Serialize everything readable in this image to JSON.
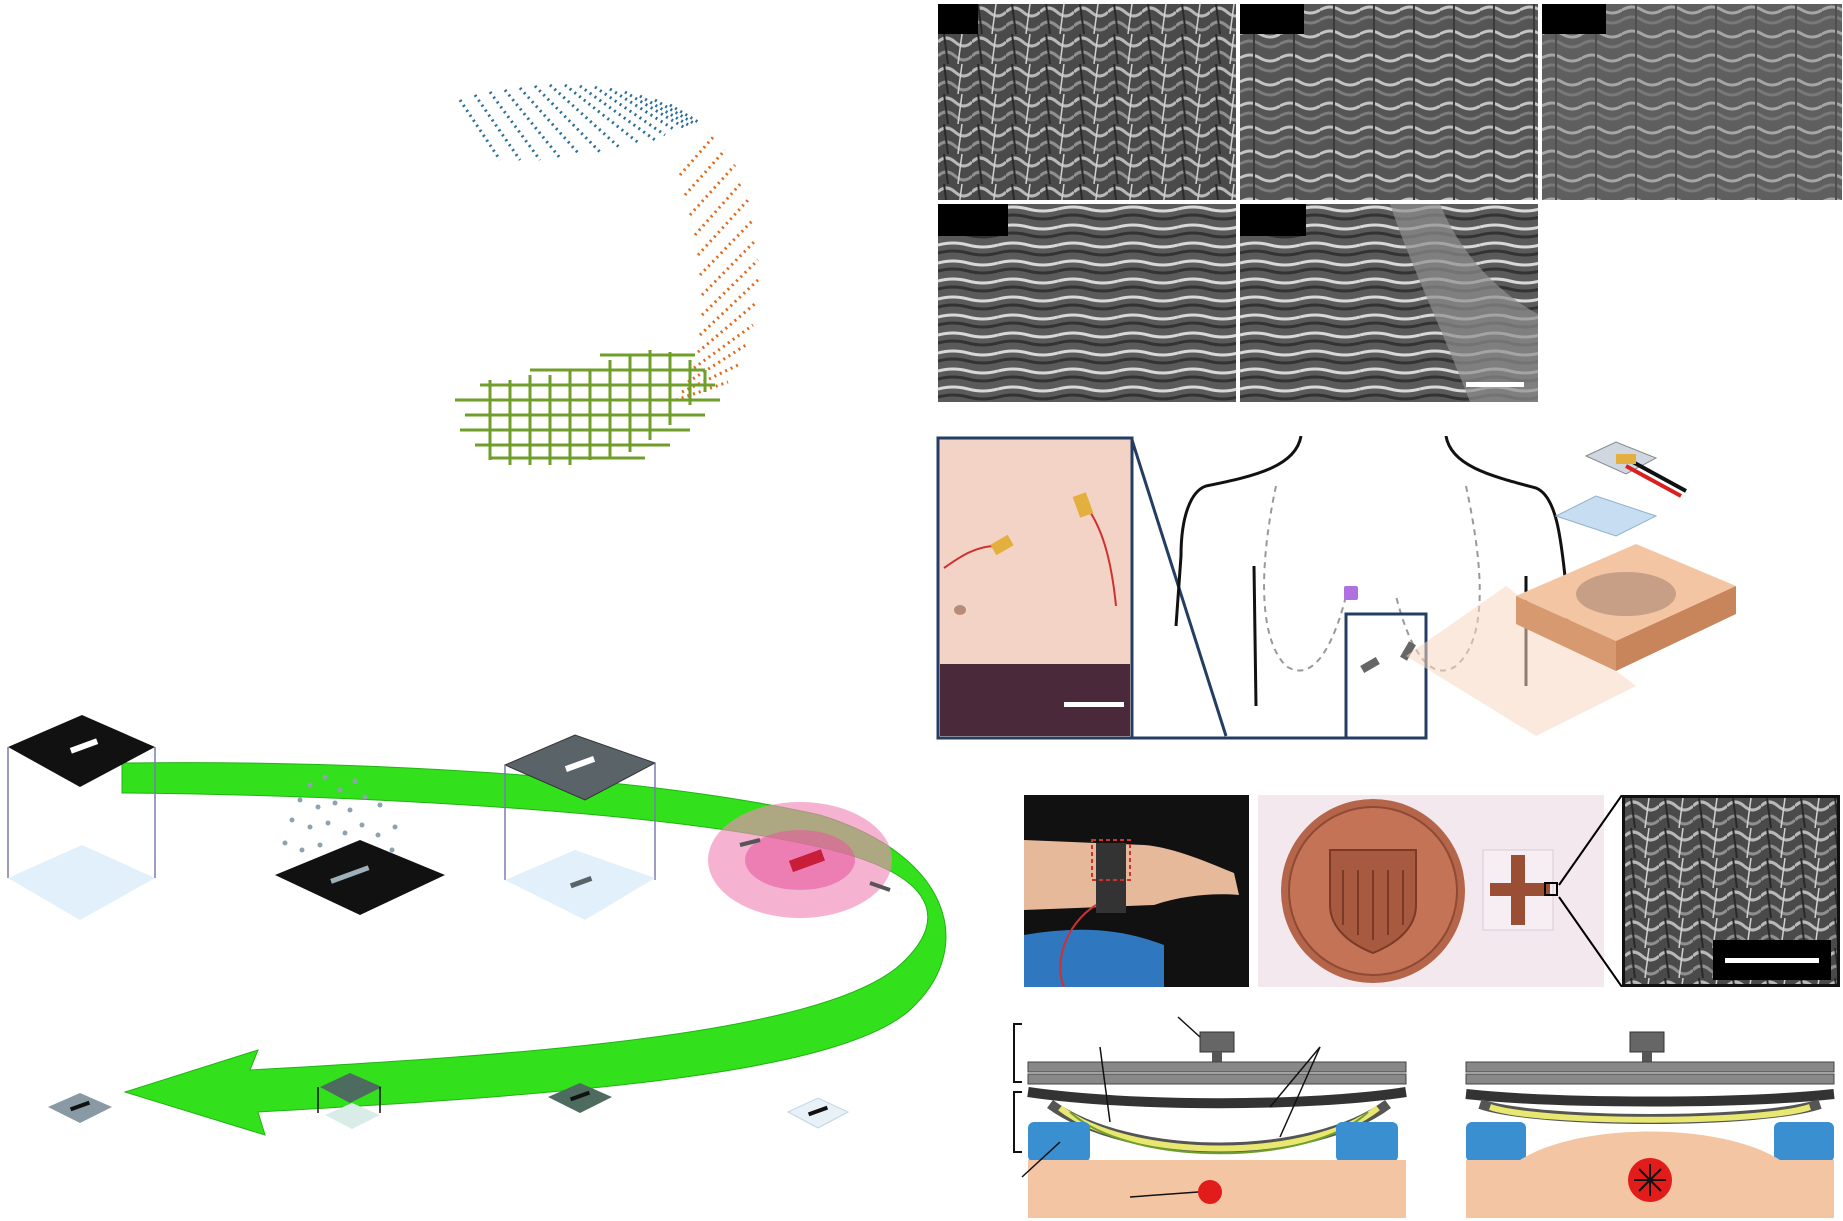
{
  "figure": {
    "colors": {
      "ribbon_green": "#33e01c",
      "arc_blue": "#2a6f97",
      "arc_orange": "#e06a1a",
      "grid_green": "#6f9e2a",
      "skin": "#f4c5a3",
      "pad_blue": "#3a8fd0",
      "sensor_yellow": "#e8e870",
      "frame_navy": "#243d63"
    },
    "panels": {
      "direction_arc": {
        "segments": [
          "blue-diagonal",
          "orange-diagonal",
          "green-crosshatch"
        ]
      },
      "sem_grid": {
        "count": 5,
        "label_text": []
      },
      "body_placement": {
        "icons": [
          "torso-outline",
          "sensor-patch",
          "skin-block"
        ]
      },
      "pulse_sensor": {
        "objects": [
          "wrist-photo",
          "coin-photo",
          "sem-inset"
        ]
      },
      "cross_sections": {
        "count": 2
      }
    }
  }
}
